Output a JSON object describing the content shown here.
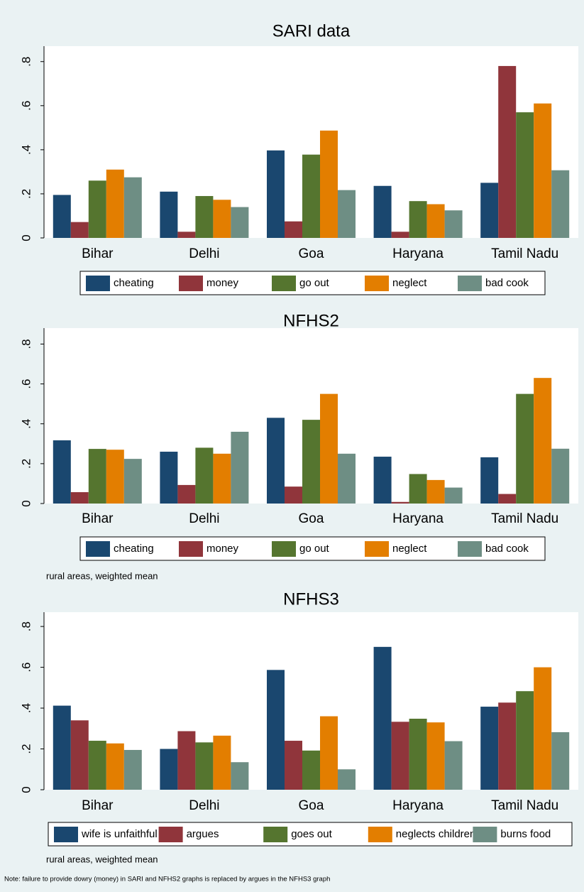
{
  "chart_data": [
    {
      "type": "bar",
      "title": "SARI data",
      "categories": [
        "Bihar",
        "Delhi",
        "Goa",
        "Haryana",
        "Tamil Nadu"
      ],
      "series": [
        {
          "name": "cheating",
          "color": "#1a476f",
          "values": [
            0.195,
            0.21,
            0.397,
            0.236,
            0.25
          ]
        },
        {
          "name": "money",
          "color": "#90353b",
          "values": [
            0.072,
            0.028,
            0.075,
            0.028,
            0.78
          ]
        },
        {
          "name": "go out",
          "color": "#55752f",
          "values": [
            0.26,
            0.19,
            0.378,
            0.167,
            0.57
          ]
        },
        {
          "name": "neglect",
          "color": "#e37e00",
          "values": [
            0.31,
            0.173,
            0.487,
            0.153,
            0.61
          ]
        },
        {
          "name": "bad cook",
          "color": "#6e8e84",
          "values": [
            0.275,
            0.14,
            0.217,
            0.125,
            0.307
          ]
        }
      ],
      "ylim": [
        0,
        0.87
      ],
      "yticks": [
        0,
        {
          "value": 0.2,
          "label": ".2"
        },
        {
          "value": 0.4,
          "label": ".4"
        },
        {
          "value": 0.6,
          "label": ".6"
        },
        {
          "value": 0.8,
          "label": ".8"
        }
      ]
    },
    {
      "type": "bar",
      "title": "NFHS2",
      "categories": [
        "Bihar",
        "Delhi",
        "Goa",
        "Haryana",
        "Tamil Nadu"
      ],
      "series": [
        {
          "name": "cheating",
          "color": "#1a476f",
          "values": [
            0.317,
            0.26,
            0.43,
            0.235,
            0.232
          ]
        },
        {
          "name": "money",
          "color": "#90353b",
          "values": [
            0.057,
            0.093,
            0.085,
            0.008,
            0.048
          ]
        },
        {
          "name": "go out",
          "color": "#55752f",
          "values": [
            0.274,
            0.28,
            0.42,
            0.148,
            0.55
          ]
        },
        {
          "name": "neglect",
          "color": "#e37e00",
          "values": [
            0.27,
            0.25,
            0.55,
            0.118,
            0.63
          ]
        },
        {
          "name": "bad cook",
          "color": "#6e8e84",
          "values": [
            0.224,
            0.36,
            0.25,
            0.08,
            0.275
          ]
        }
      ],
      "ylim": [
        0,
        0.88
      ],
      "yticks": [
        0,
        {
          "value": 0.2,
          "label": ".2"
        },
        {
          "value": 0.4,
          "label": ".4"
        },
        {
          "value": 0.6,
          "label": ".6"
        },
        {
          "value": 0.8,
          "label": ".8"
        }
      ],
      "note": "rural areas, weighted mean"
    },
    {
      "type": "bar",
      "title": "NFHS3",
      "categories": [
        "Bihar",
        "Delhi",
        "Goa",
        "Haryana",
        "Tamil Nadu"
      ],
      "series": [
        {
          "name": "wife is unfaithful",
          "color": "#1a476f",
          "values": [
            0.412,
            0.2,
            0.587,
            0.7,
            0.407
          ]
        },
        {
          "name": "argues",
          "color": "#90353b",
          "values": [
            0.34,
            0.287,
            0.24,
            0.333,
            0.427
          ]
        },
        {
          "name": "goes out",
          "color": "#55752f",
          "values": [
            0.24,
            0.232,
            0.192,
            0.348,
            0.483
          ]
        },
        {
          "name": "neglects children",
          "color": "#e37e00",
          "values": [
            0.227,
            0.265,
            0.36,
            0.33,
            0.6
          ]
        },
        {
          "name": "burns food",
          "color": "#6e8e84",
          "values": [
            0.195,
            0.135,
            0.1,
            0.238,
            0.282
          ]
        }
      ],
      "ylim": [
        0,
        0.87
      ],
      "yticks": [
        0,
        {
          "value": 0.2,
          "label": ".2"
        },
        {
          "value": 0.4,
          "label": ".4"
        },
        {
          "value": 0.6,
          "label": ".6"
        },
        {
          "value": 0.8,
          "label": ".8"
        }
      ],
      "note": "rural areas, weighted mean"
    }
  ],
  "note": "Note: failure to provide dowry (money) in SARI and NFHS2 graphs is replaced by argues in the NFHS3 graph"
}
